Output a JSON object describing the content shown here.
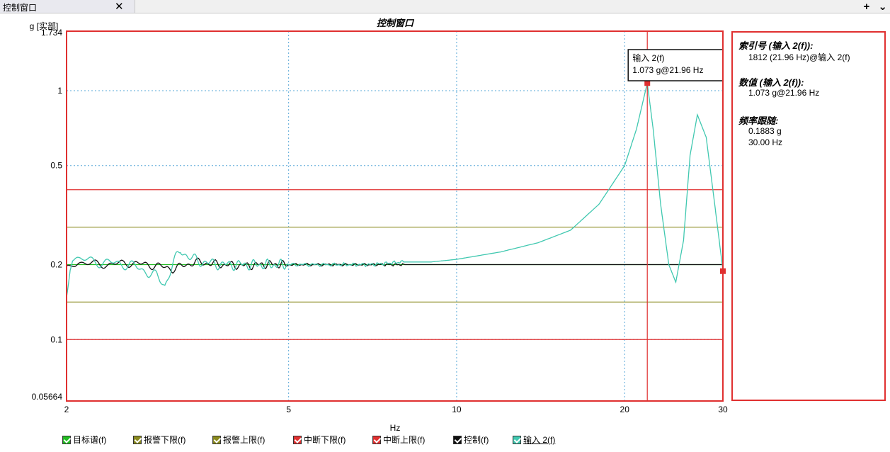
{
  "tab": {
    "title": "控制窗口",
    "close": "✕",
    "plus": "+",
    "menu": "⌄"
  },
  "chart_data": {
    "type": "line",
    "title": "控制窗口",
    "xlabel": "Hz",
    "ylabel": "g [实部]",
    "x_scale": "log",
    "y_scale": "log",
    "xlim": [
      2,
      30
    ],
    "ylim": [
      0.05664,
      1.734
    ],
    "x_ticks": [
      2,
      5,
      10,
      20,
      30
    ],
    "y_ticks": [
      "0.05664",
      "0.1",
      "0.2",
      "0.5",
      "1",
      "1.734"
    ],
    "grid": true,
    "horizontal_lines": [
      {
        "name": "中断上限(f)",
        "value": 0.4,
        "color": "#e03030"
      },
      {
        "name": "报警上限(f)",
        "value": 0.283,
        "color": "#8a8a1e"
      },
      {
        "name": "目标谱(f)",
        "value": 0.2,
        "color": "#22bb22"
      },
      {
        "name": "报警下限(f)",
        "value": 0.1415,
        "color": "#8a8a1e"
      },
      {
        "name": "中断下限(f)",
        "value": 0.1,
        "color": "#e03030"
      }
    ],
    "series": [
      {
        "name": "控制(f)",
        "color": "#111111",
        "x": [
          2,
          2.05,
          2.1,
          2.3,
          2.6,
          2.9,
          3.1,
          3.4,
          3.8,
          4.2,
          4.6,
          5,
          6,
          7,
          8,
          10,
          12,
          15,
          18,
          21.96,
          22.5,
          25,
          28,
          30
        ],
        "y": [
          0.19,
          0.2,
          0.205,
          0.2,
          0.203,
          0.198,
          0.192,
          0.205,
          0.2,
          0.198,
          0.201,
          0.2,
          0.2,
          0.2,
          0.2,
          0.2,
          0.2,
          0.2,
          0.2,
          0.2,
          0.2,
          0.2,
          0.2,
          0.2
        ]
      },
      {
        "name": "输入 2(f)",
        "color": "#40c8b0",
        "x": [
          2,
          2.03,
          2.05,
          2.1,
          2.3,
          2.6,
          2.9,
          3.0,
          3.1,
          3.2,
          3.3,
          3.5,
          3.8,
          4.2,
          4.6,
          5,
          6,
          7,
          8,
          9,
          10,
          12,
          14,
          16,
          18,
          20,
          21,
          21.96,
          22.5,
          23.2,
          24,
          24.7,
          25.5,
          26.2,
          27,
          28,
          29,
          30
        ],
        "y": [
          0.15,
          0.2,
          0.215,
          0.21,
          0.205,
          0.2,
          0.18,
          0.165,
          0.2,
          0.23,
          0.215,
          0.205,
          0.2,
          0.2,
          0.2,
          0.2,
          0.2,
          0.2,
          0.205,
          0.205,
          0.21,
          0.225,
          0.245,
          0.275,
          0.35,
          0.5,
          0.7,
          1.073,
          0.7,
          0.35,
          0.2,
          0.17,
          0.25,
          0.55,
          0.8,
          0.65,
          0.35,
          0.19
        ]
      }
    ],
    "cursor": {
      "x": 21.96,
      "y": 1.073,
      "tooltip": [
        "输入 2(f)",
        "1.073 g@21.96 Hz"
      ]
    },
    "end_marker": {
      "x": 30,
      "y": 0.1883
    }
  },
  "legend": [
    {
      "label": "目标谱(f)",
      "color": "#22bb22"
    },
    {
      "label": "报警下限(f)",
      "color": "#8a8a1e"
    },
    {
      "label": "报警上限(f)",
      "color": "#8a8a1e"
    },
    {
      "label": "中断下限(f)",
      "color": "#e03030"
    },
    {
      "label": "中断上限(f)",
      "color": "#e03030"
    },
    {
      "label": "控制(f)",
      "color": "#111111"
    },
    {
      "label": "输入 2(f)",
      "color": "#40c8b0"
    }
  ],
  "panel": {
    "index_title": "索引号 (输入 2(f)):",
    "index_value": "1812 (21.96  Hz)@输入 2(f)",
    "value_title": "数值 (输入 2(f)):",
    "value_value": "1.073  g@21.96  Hz",
    "tracking_title": "频率跟随:",
    "tracking_g": "0.1883  g",
    "tracking_hz": "30.00  Hz"
  }
}
